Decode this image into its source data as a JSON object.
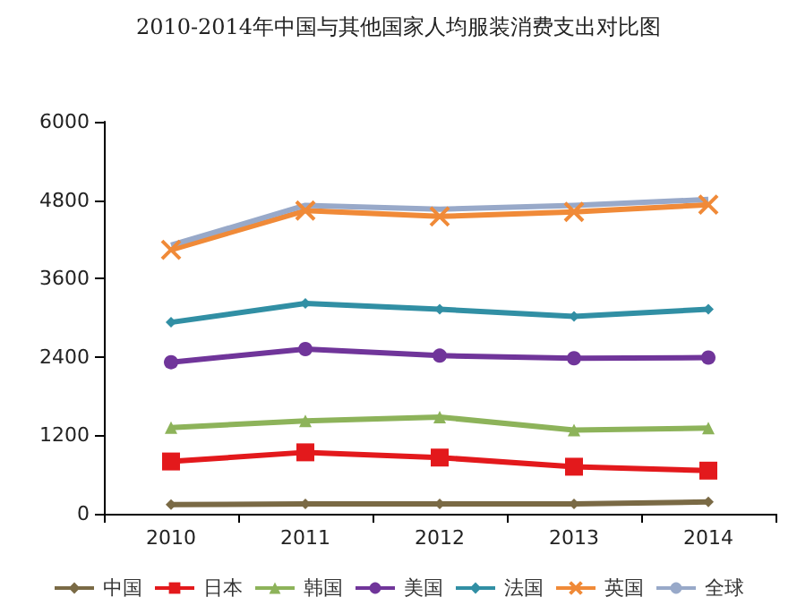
{
  "chart_data": {
    "type": "line",
    "title": "2010-2014年中国与其他国家人均服装消费支出对比图",
    "categories": [
      "2010",
      "2011",
      "2012",
      "2013",
      "2014"
    ],
    "series": [
      {
        "name": "中国",
        "color": "#7a6a45",
        "marker": "diamond",
        "values": [
          140,
          150,
          150,
          150,
          180
        ]
      },
      {
        "name": "日本",
        "color": "#e3191c",
        "marker": "square",
        "values": [
          800,
          940,
          860,
          720,
          660
        ]
      },
      {
        "name": "韩国",
        "color": "#8db35a",
        "marker": "triangle",
        "values": [
          1320,
          1420,
          1480,
          1280,
          1310
        ]
      },
      {
        "name": "美国",
        "color": "#70359a",
        "marker": "circle",
        "values": [
          2320,
          2520,
          2420,
          2380,
          2390
        ]
      },
      {
        "name": "法国",
        "color": "#318fa4",
        "marker": "diamond",
        "values": [
          2930,
          3220,
          3130,
          3020,
          3130
        ]
      },
      {
        "name": "英国",
        "color": "#f08a38",
        "marker": "cross",
        "values": [
          4040,
          4640,
          4550,
          4620,
          4730
        ]
      },
      {
        "name": "全球",
        "color": "#98a9c9",
        "marker": "none",
        "values": [
          4110,
          4720,
          4660,
          4720,
          4810
        ]
      }
    ],
    "ylim": [
      0,
      6000
    ],
    "yticks": [
      0,
      1200,
      2400,
      3600,
      4800,
      6000
    ],
    "grid": false,
    "legend": "bottom"
  }
}
